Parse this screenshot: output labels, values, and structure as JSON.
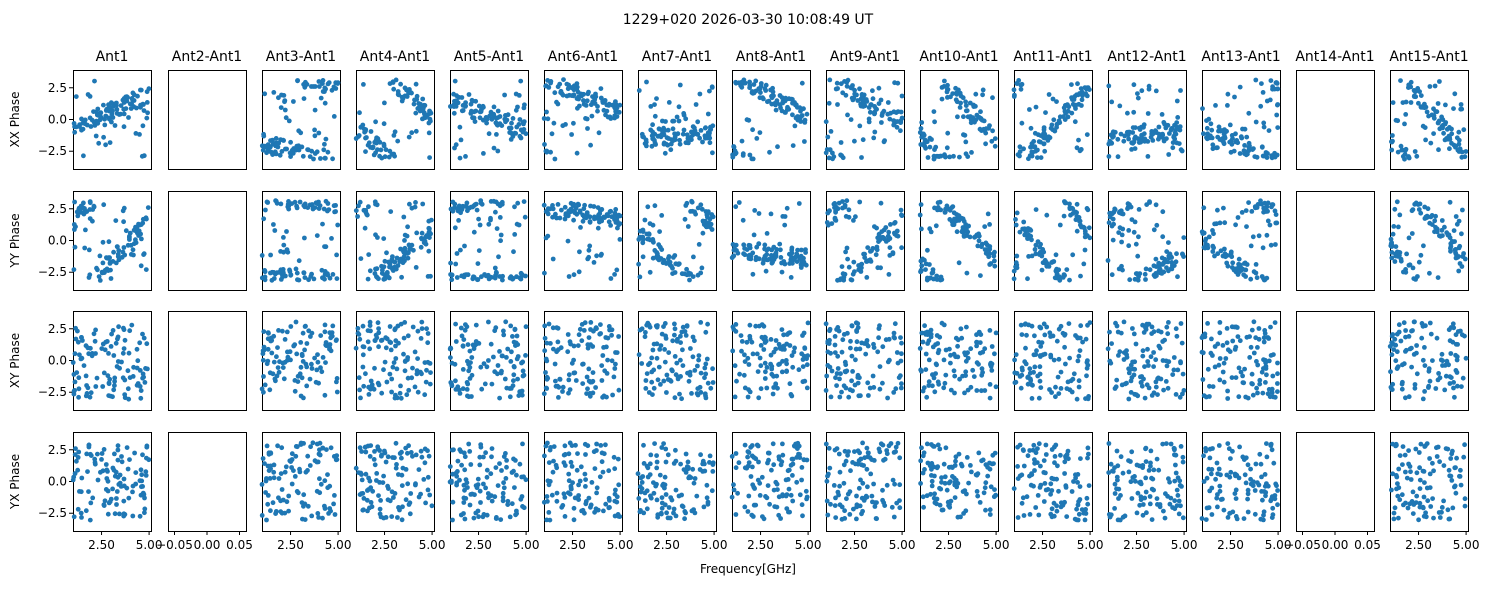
{
  "chart_data": {
    "type": "scatter",
    "suptitle": "1229+020 2026-03-30 10:08:49 UT",
    "xlabel": "Frequency[GHz]",
    "columns": [
      "Ant1",
      "Ant2-Ant1",
      "Ant3-Ant1",
      "Ant4-Ant1",
      "Ant5-Ant1",
      "Ant6-Ant1",
      "Ant7-Ant1",
      "Ant8-Ant1",
      "Ant9-Ant1",
      "Ant10-Ant1",
      "Ant11-Ant1",
      "Ant12-Ant1",
      "Ant13-Ant1",
      "Ant14-Ant1",
      "Ant15-Ant1"
    ],
    "rows": [
      "XX Phase",
      "YY Phase",
      "XY Phase",
      "YX Phase"
    ],
    "ylim": [
      -3.9,
      3.9
    ],
    "yticks": [
      -2.5,
      0.0,
      2.5
    ],
    "ytick_labels": [
      "−2.5",
      "0.0",
      "2.5"
    ],
    "xlim": [
      1.0,
      5.1
    ],
    "xticks": [
      2.5,
      5.0
    ],
    "xtick_labels": [
      "2.50",
      "5.00"
    ],
    "empty_xlim": [
      -0.06,
      0.06
    ],
    "empty_xticks": [
      -0.05,
      0.0,
      0.05
    ],
    "empty_xtick_labels": [
      "−0.05",
      "0.00",
      "0.05"
    ],
    "empty_columns": [
      1,
      13
    ],
    "points_per_panel": 110,
    "marker_color": "#1f77b4",
    "x_range_ghz": [
      1.0,
      5.0
    ],
    "note": "Each panel shows ~110 phase samples (radians) scattered across 1.0–5.0 GHz"
  }
}
